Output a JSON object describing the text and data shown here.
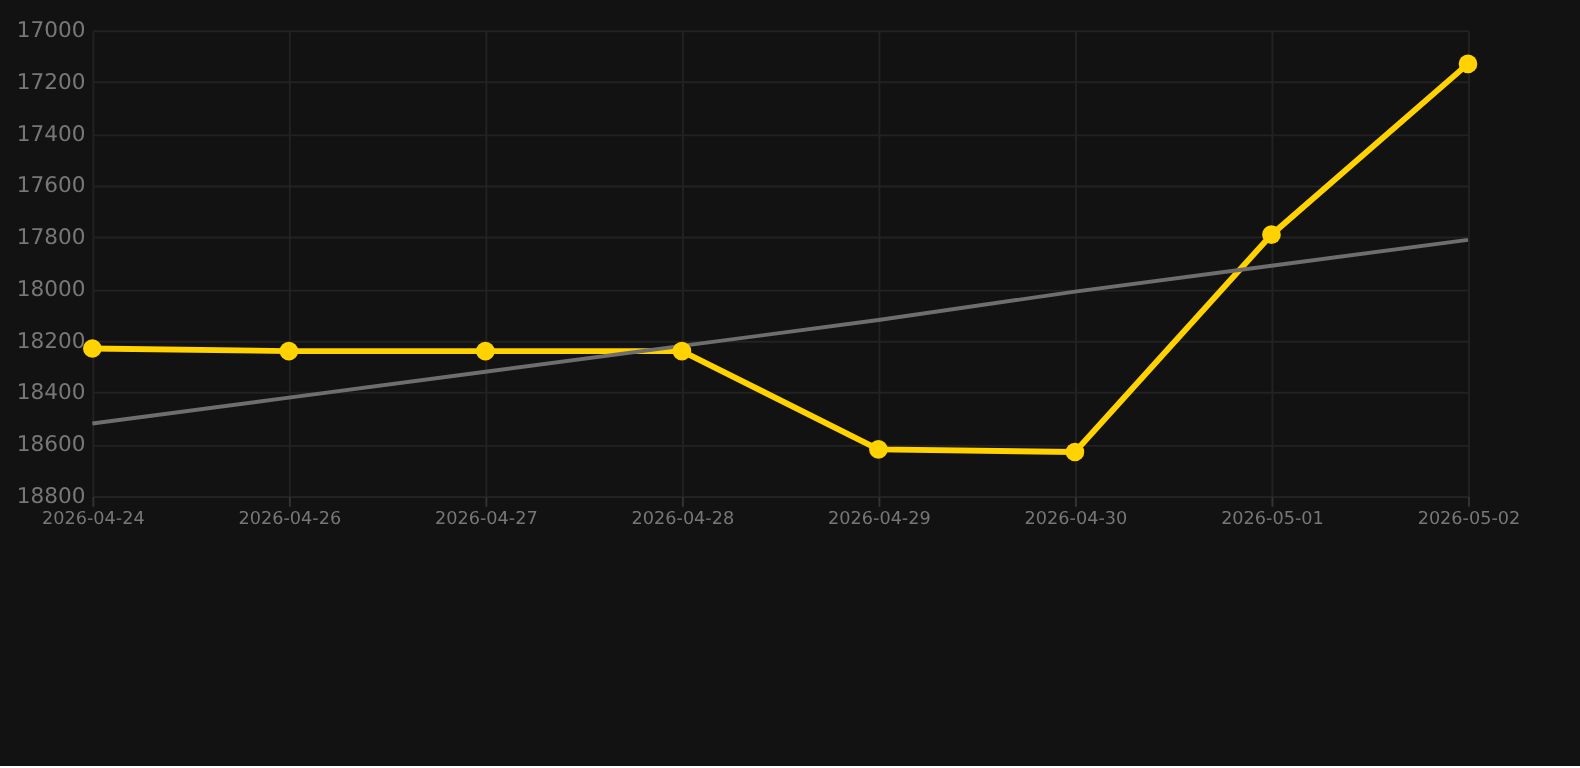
{
  "chart_data": {
    "type": "line",
    "categories": [
      "2026-04-24",
      "2026-04-26",
      "2026-04-27",
      "2026-04-28",
      "2026-04-29",
      "2026-04-30",
      "2026-05-01",
      "2026-05-02"
    ],
    "series": [
      {
        "color": "#ffd200",
        "marker": "circle",
        "values": [
          18230,
          18240,
          18240,
          18240,
          18620,
          18630,
          17790,
          17130
        ]
      },
      {
        "color": "#6e6e6e",
        "marker": "none",
        "values": [
          18520,
          18420,
          18320,
          18220,
          18120,
          18010,
          17910,
          17810
        ]
      }
    ],
    "ylim": [
      18800,
      17000
    ],
    "yticks": [
      17000,
      17200,
      17400,
      17600,
      17800,
      18000,
      18200,
      18400,
      18600,
      18800
    ],
    "grid": true,
    "legend": false,
    "line_style": "solid"
  }
}
